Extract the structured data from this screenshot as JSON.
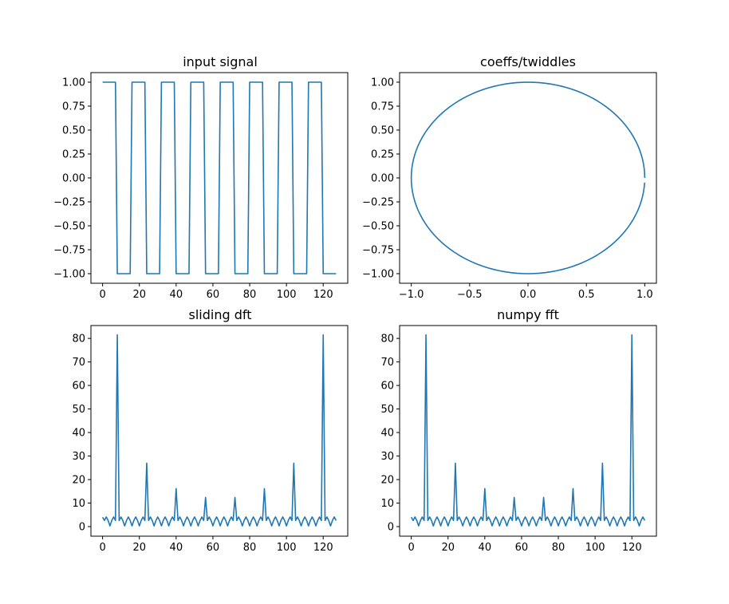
{
  "colors": {
    "series": "#1f77b4",
    "axes": "#000000",
    "background": "#ffffff"
  },
  "chart_data": [
    {
      "type": "line",
      "title": "input signal",
      "xlabel": "",
      "ylabel": "",
      "xlim": [
        -6.35,
        133.35
      ],
      "ylim": [
        -1.1,
        1.1
      ],
      "xticks": [
        0,
        20,
        40,
        60,
        80,
        100,
        120
      ],
      "xtick_labels": [
        "0",
        "20",
        "40",
        "60",
        "80",
        "100",
        "120"
      ],
      "yticks": [
        1.0,
        0.75,
        0.5,
        0.25,
        0.0,
        -0.25,
        -0.5,
        -0.75,
        -1.0
      ],
      "ytick_labels": [
        "1.00",
        "0.75",
        "0.50",
        "0.25",
        "0.00",
        "−0.25",
        "−0.50",
        "−0.75",
        "−1.00"
      ],
      "grid": false,
      "series": [
        {
          "x": [
            0,
            7,
            8,
            15,
            16,
            23,
            24,
            31,
            32,
            39,
            40,
            47,
            48,
            55,
            56,
            63,
            64,
            71,
            72,
            79,
            80,
            87,
            88,
            95,
            96,
            103,
            104,
            111,
            112,
            119,
            120,
            127
          ],
          "y": [
            1,
            1,
            -1,
            -1,
            1,
            1,
            -1,
            -1,
            1,
            1,
            -1,
            -1,
            1,
            1,
            -1,
            -1,
            1,
            1,
            -1,
            -1,
            1,
            1,
            -1,
            -1,
            1,
            1,
            -1,
            -1,
            1,
            1,
            -1,
            -1
          ]
        }
      ]
    },
    {
      "type": "line",
      "title": "coeffs/twiddles",
      "xlabel": "",
      "ylabel": "",
      "xlim": [
        -1.1,
        1.1
      ],
      "ylim": [
        -1.1,
        1.1
      ],
      "xticks": [
        -1.0,
        -0.5,
        0.0,
        0.5,
        1.0
      ],
      "xtick_labels": [
        "−1.0",
        "−0.5",
        "0.0",
        "0.5",
        "1.0"
      ],
      "yticks": [
        1.0,
        0.75,
        0.5,
        0.25,
        0.0,
        -0.25,
        -0.5,
        -0.75,
        -1.0
      ],
      "ytick_labels": [
        "1.00",
        "0.75",
        "0.50",
        "0.25",
        "0.00",
        "−0.25",
        "−0.50",
        "−0.75",
        "−1.00"
      ],
      "grid": false,
      "series": [
        {
          "parametric": "unit_circle",
          "x": "cos(2πk/128)",
          "y": "sin(2πk/128)",
          "k": [
            0,
            127
          ]
        }
      ]
    },
    {
      "type": "line",
      "title": "sliding dft",
      "xlabel": "",
      "ylabel": "",
      "xlim": [
        -6.35,
        133.35
      ],
      "ylim": [
        -4.07,
        85.47
      ],
      "xticks": [
        0,
        20,
        40,
        60,
        80,
        100,
        120
      ],
      "xtick_labels": [
        "0",
        "20",
        "40",
        "60",
        "80",
        "100",
        "120"
      ],
      "yticks": [
        0,
        10,
        20,
        30,
        40,
        50,
        60,
        70,
        80
      ],
      "ytick_labels": [
        "0",
        "10",
        "20",
        "30",
        "40",
        "50",
        "60",
        "70",
        "80"
      ],
      "grid": false,
      "series": [
        {
          "spectrum": "square_wave",
          "x": [
            0,
            127
          ],
          "peaks": {
            "8": 81.5,
            "24": 27,
            "40": 16.2,
            "56": 12.4,
            "72": 12.4,
            "88": 16.2,
            "104": 27,
            "120": 81.5
          }
        }
      ]
    },
    {
      "type": "line",
      "title": "numpy fft",
      "xlabel": "",
      "ylabel": "",
      "xlim": [
        -6.35,
        133.35
      ],
      "ylim": [
        -4.07,
        85.47
      ],
      "xticks": [
        0,
        20,
        40,
        60,
        80,
        100,
        120
      ],
      "xtick_labels": [
        "0",
        "20",
        "40",
        "60",
        "80",
        "100",
        "120"
      ],
      "yticks": [
        0,
        10,
        20,
        30,
        40,
        50,
        60,
        70,
        80
      ],
      "ytick_labels": [
        "0",
        "10",
        "20",
        "30",
        "40",
        "50",
        "60",
        "70",
        "80"
      ],
      "grid": false,
      "series": [
        {
          "spectrum": "square_wave",
          "x": [
            0,
            127
          ],
          "peaks": {
            "8": 81.5,
            "24": 27,
            "40": 16.2,
            "56": 12.4,
            "72": 12.4,
            "88": 16.2,
            "104": 27,
            "120": 81.5
          }
        }
      ]
    }
  ]
}
